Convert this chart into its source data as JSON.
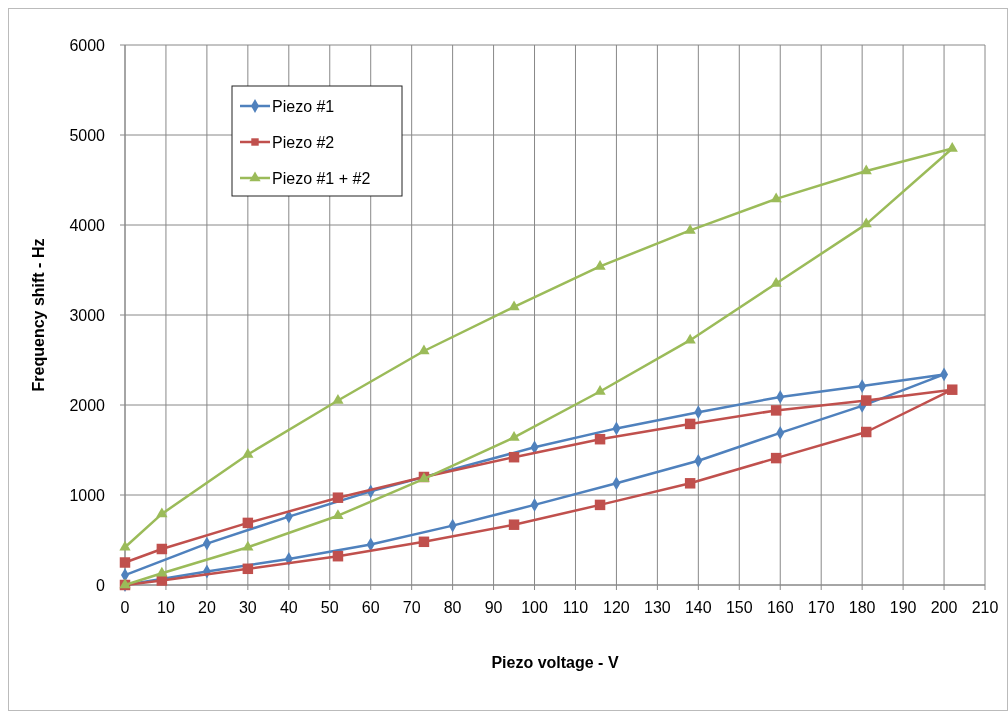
{
  "chart_data": {
    "type": "line",
    "xlabel": "Piezo voltage - V",
    "ylabel": "Frequency shift - Hz",
    "xlim": [
      0,
      210
    ],
    "xticks": [
      0,
      10,
      20,
      30,
      40,
      50,
      60,
      70,
      80,
      90,
      100,
      110,
      120,
      130,
      140,
      150,
      160,
      170,
      180,
      190,
      200,
      210
    ],
    "ylim": [
      0,
      6000
    ],
    "yticks": [
      0,
      1000,
      2000,
      3000,
      4000,
      5000,
      6000
    ],
    "grid": true,
    "legend": "top left",
    "series": [
      {
        "name": "Piezo #1",
        "color": "#4f81bd",
        "marker": "diamond",
        "x": [
          0,
          20,
          40,
          60,
          80,
          100,
          120,
          140,
          160,
          180,
          200,
          180,
          160,
          140,
          120,
          100,
          60,
          40,
          20,
          0
        ],
        "values": [
          0,
          150,
          290,
          450,
          660,
          890,
          1130,
          1380,
          1690,
          1990,
          2340,
          2210,
          2090,
          1920,
          1740,
          1530,
          1040,
          760,
          460,
          110
        ]
      },
      {
        "name": "Piezo #2",
        "color": "#c0504d",
        "marker": "square",
        "x": [
          0,
          9,
          30,
          52,
          73,
          95,
          116,
          138,
          159,
          181,
          202,
          181,
          159,
          138,
          116,
          95,
          73,
          52,
          30,
          9,
          0
        ],
        "values": [
          0,
          50,
          180,
          320,
          480,
          670,
          890,
          1130,
          1410,
          1700,
          2170,
          2050,
          1940,
          1790,
          1620,
          1420,
          1200,
          970,
          690,
          400,
          250
        ]
      },
      {
        "name": "Piezo #1 + #2",
        "color": "#9bbb59",
        "marker": "triangle",
        "x": [
          0,
          9,
          30,
          52,
          73,
          95,
          116,
          138,
          159,
          181,
          202,
          181,
          159,
          138,
          116,
          95,
          73,
          52,
          30,
          9,
          0
        ],
        "values": [
          0,
          130,
          420,
          770,
          1180,
          1640,
          2150,
          2720,
          3350,
          4010,
          4850,
          4600,
          4290,
          3940,
          3540,
          3090,
          2600,
          2050,
          1450,
          790,
          420
        ]
      }
    ]
  }
}
